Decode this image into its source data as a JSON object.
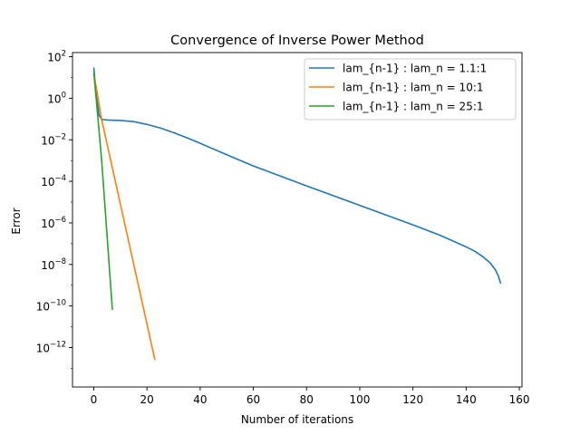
{
  "chart_data": {
    "type": "line",
    "title": "Convergence of Inverse Power Method",
    "xlabel": "Number of iterations",
    "ylabel": "Error",
    "xlim": [
      -8,
      161
    ],
    "ylim_log10": [
      -13.9,
      2.2
    ],
    "yscale": "log",
    "grid": false,
    "legend_position": "top-right",
    "x_ticks": [
      0,
      20,
      40,
      60,
      80,
      100,
      120,
      140,
      160
    ],
    "y_ticks": [
      {
        "exp": 2,
        "base": "10",
        "sup": "2"
      },
      {
        "exp": 0,
        "base": "10",
        "sup": "0"
      },
      {
        "exp": -2,
        "base": "10",
        "sup": "−2"
      },
      {
        "exp": -4,
        "base": "10",
        "sup": "−4"
      },
      {
        "exp": -6,
        "base": "10",
        "sup": "−6"
      },
      {
        "exp": -8,
        "base": "10",
        "sup": "−8"
      },
      {
        "exp": -10,
        "base": "10",
        "sup": "−10"
      },
      {
        "exp": -12,
        "base": "10",
        "sup": "−12"
      }
    ],
    "series": [
      {
        "name": "lam_{n-1} : lam_n = 1.1:1",
        "color": "#1f77b4",
        "points": [
          [
            0,
            30
          ],
          [
            1,
            1.2
          ],
          [
            2,
            0.15
          ],
          [
            3,
            0.095
          ],
          [
            5,
            0.09
          ],
          [
            10,
            0.085
          ],
          [
            15,
            0.075
          ],
          [
            20,
            0.055
          ],
          [
            25,
            0.037
          ],
          [
            30,
            0.022
          ],
          [
            35,
            0.0125
          ],
          [
            40,
            0.0068
          ],
          [
            45,
            0.0036
          ],
          [
            50,
            0.0019
          ],
          [
            60,
            0.00055
          ],
          [
            80,
            6e-05
          ],
          [
            100,
            7e-06
          ],
          [
            120,
            8e-07
          ],
          [
            130,
            2.6e-07
          ],
          [
            140,
            7e-08
          ],
          [
            143,
            4.5e-08
          ],
          [
            146,
            2.5e-08
          ],
          [
            149,
            1.2e-08
          ],
          [
            151,
            5.5e-09
          ],
          [
            152,
            3e-09
          ],
          [
            153,
            1.2e-09
          ]
        ]
      },
      {
        "name": "lam_{n-1} : lam_n = 10:1",
        "color": "#ff7f0e",
        "points": [
          [
            0,
            15
          ],
          [
            1,
            3
          ],
          [
            2,
            0.5
          ],
          [
            3,
            0.09
          ],
          [
            23,
            2.5e-13
          ]
        ]
      },
      {
        "name": "lam_{n-1} : lam_n = 25:1",
        "color": "#2ca02c",
        "points": [
          [
            0,
            18
          ],
          [
            1,
            0.7
          ],
          [
            2,
            0.025
          ],
          [
            3,
            0.0009
          ],
          [
            7,
            6.5e-11
          ]
        ]
      }
    ]
  }
}
